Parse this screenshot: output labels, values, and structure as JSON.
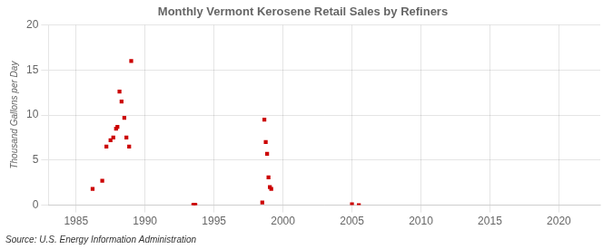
{
  "chart_data": {
    "type": "scatter",
    "title": "Monthly Vermont Kerosene Retail Sales by Refiners",
    "ylabel": "Thousand Gallons per Day",
    "annotation": "Source: U.S. Energy Information Administration",
    "xlim": [
      1983,
      2023
    ],
    "xticks": [
      1985,
      1990,
      1995,
      2000,
      2005,
      2010,
      2015,
      2020
    ],
    "ylim": [
      0,
      20
    ],
    "yticks": [
      0,
      5,
      10,
      15,
      20
    ],
    "grid": true,
    "series": [
      {
        "type": "scatter",
        "marker": "square",
        "color": "#cc0000",
        "x": [
          1986.2,
          1986.9,
          1987.2,
          1987.5,
          1987.7,
          1987.9,
          1988.0,
          1988.15,
          1988.3,
          1988.5,
          1988.65,
          1988.85,
          1989.0,
          1993.5,
          1993.65,
          1998.5,
          1998.65,
          1998.75,
          1998.85,
          1998.95,
          1999.05,
          1999.15,
          2005.0,
          2005.5
        ],
        "values": [
          1.8,
          2.7,
          6.5,
          7.2,
          7.5,
          8.5,
          8.7,
          12.6,
          11.5,
          9.7,
          7.5,
          6.5,
          16.0,
          0.0,
          0.0,
          0.3,
          9.5,
          7.0,
          5.7,
          3.1,
          2.0,
          1.8,
          0.1,
          0.0
        ]
      },
      {
        "type": "line",
        "color": "#cc0000",
        "x": [
          1993.4,
          1993.75
        ],
        "values": [
          0.0,
          0.0
        ]
      }
    ]
  }
}
